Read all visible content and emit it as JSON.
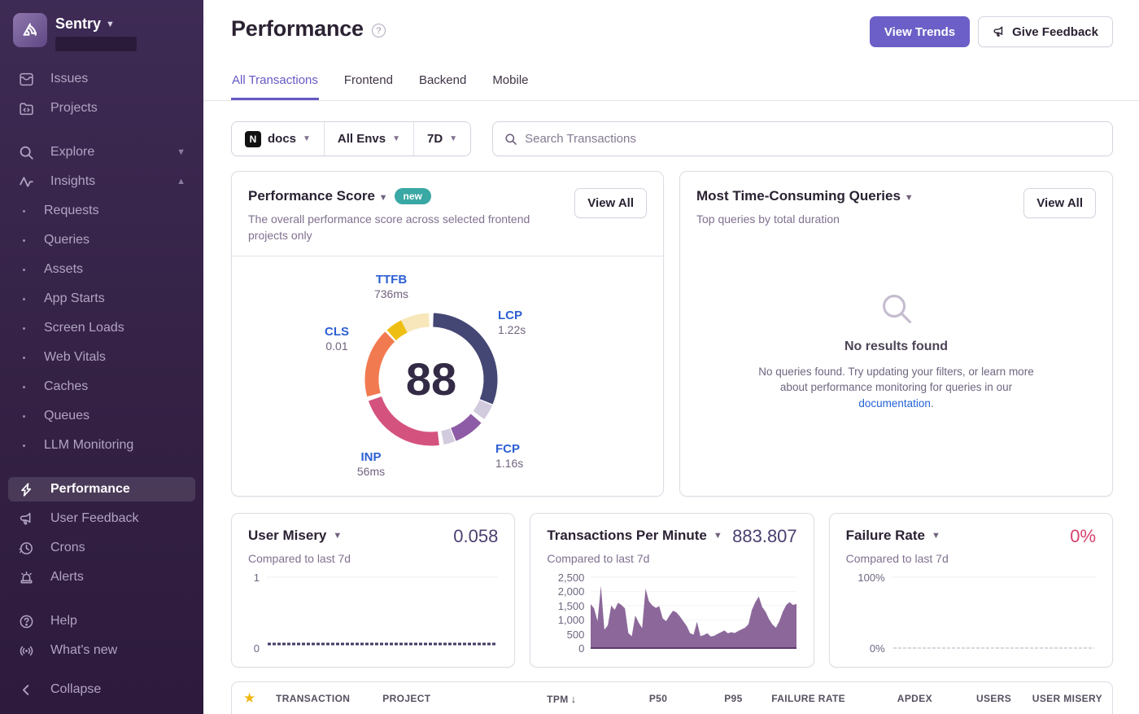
{
  "sidebar": {
    "brand": {
      "name": "Sentry"
    },
    "primary": [
      {
        "id": "issues",
        "label": "Issues",
        "icon": "issues"
      },
      {
        "id": "projects",
        "label": "Projects",
        "icon": "projects"
      }
    ],
    "explore": {
      "id": "explore",
      "label": "Explore",
      "icon": "search",
      "chevron": "down"
    },
    "insights": {
      "id": "insights",
      "label": "Insights",
      "icon": "insights",
      "chevron": "up"
    },
    "insights_children": [
      {
        "id": "requests",
        "label": "Requests"
      },
      {
        "id": "queries",
        "label": "Queries"
      },
      {
        "id": "assets",
        "label": "Assets"
      },
      {
        "id": "app-starts",
        "label": "App Starts"
      },
      {
        "id": "screen-loads",
        "label": "Screen Loads"
      },
      {
        "id": "web-vitals",
        "label": "Web Vitals"
      },
      {
        "id": "caches",
        "label": "Caches"
      },
      {
        "id": "queues",
        "label": "Queues"
      },
      {
        "id": "llm-monitoring",
        "label": "LLM Monitoring"
      }
    ],
    "secondary": [
      {
        "id": "performance",
        "label": "Performance",
        "icon": "bolt",
        "active": true
      },
      {
        "id": "user-feedback",
        "label": "User Feedback",
        "icon": "megaphone"
      },
      {
        "id": "crons",
        "label": "Crons",
        "icon": "clock"
      },
      {
        "id": "alerts",
        "label": "Alerts",
        "icon": "siren"
      }
    ],
    "footer": [
      {
        "id": "help",
        "label": "Help",
        "icon": "help"
      },
      {
        "id": "whats-new",
        "label": "What's new",
        "icon": "broadcast"
      }
    ],
    "collapse": {
      "label": "Collapse"
    }
  },
  "header": {
    "title": "Performance",
    "view_trends_label": "View Trends",
    "give_feedback_label": "Give Feedback"
  },
  "tabs": [
    {
      "label": "All Transactions",
      "active": true
    },
    {
      "label": "Frontend",
      "active": false
    },
    {
      "label": "Backend",
      "active": false
    },
    {
      "label": "Mobile",
      "active": false
    }
  ],
  "filters": {
    "project": "docs",
    "project_icon": "N",
    "environment": "All Envs",
    "period": "7D",
    "search_placeholder": "Search Transactions"
  },
  "cards": {
    "performance_score": {
      "title": "Performance Score",
      "badge": "new",
      "description": "The overall performance score across selected frontend projects only",
      "view_all_label": "View All",
      "score": "88",
      "chart_data": {
        "type": "pie",
        "title": "Performance Score",
        "center_value": 88,
        "vitals": [
          {
            "name": "TTFB",
            "value": "736ms"
          },
          {
            "name": "LCP",
            "value": "1.22s"
          },
          {
            "name": "CLS",
            "value": "0.01"
          },
          {
            "name": "INP",
            "value": "56ms"
          },
          {
            "name": "FCP",
            "value": "1.16s"
          }
        ],
        "segments": [
          {
            "vital": "LCP",
            "from": 2,
            "to": 112,
            "color": "#444674"
          },
          {
            "vital": "LCP-unfilled",
            "from": 113,
            "to": 127,
            "color": "#d2cbdd"
          },
          {
            "vital": "FCP",
            "from": 131,
            "to": 158,
            "color": "#8e5ba6"
          },
          {
            "vital": "FCP-unfilled",
            "from": 159,
            "to": 169,
            "color": "#d2cbdd"
          },
          {
            "vital": "INP",
            "from": 173,
            "to": 251,
            "color": "#d4537e"
          },
          {
            "vital": "CLS",
            "from": 255,
            "to": 316,
            "color": "#f27a50"
          },
          {
            "vital": "TTFB",
            "from": 318,
            "to": 333,
            "color": "#efbe13"
          },
          {
            "vital": "TTFB-light",
            "from": 333,
            "to": 358,
            "color": "#f8e7bb"
          }
        ]
      }
    },
    "queries": {
      "title": "Most Time-Consuming Queries",
      "description": "Top queries by total duration",
      "view_all_label": "View All",
      "empty_title": "No results found",
      "empty_text_1": "No queries found. Try updating your filters, or learn more about performance monitoring for queries in our ",
      "empty_link": "documentation",
      "empty_text_2": "."
    },
    "user_misery": {
      "title": "User Misery",
      "value": "0.058",
      "subtitle": "Compared to last 7d",
      "chart_data": {
        "type": "line",
        "ylim": [
          0,
          1
        ],
        "ticks": [
          "1",
          "0"
        ],
        "series_value": 0.058,
        "color": "#3f3b66"
      }
    },
    "tpm": {
      "title": "Transactions Per Minute",
      "value": "883.807",
      "subtitle": "Compared to last 7d",
      "chart_data": {
        "type": "area",
        "ylim": [
          0,
          2500
        ],
        "ticks": [
          "2,500",
          "2,000",
          "1,500",
          "1,000",
          "500",
          "0"
        ],
        "color": "#7c538c",
        "values": [
          1550,
          1400,
          950,
          2200,
          650,
          800,
          1500,
          1350,
          1600,
          1520,
          1400,
          520,
          420,
          1150,
          900,
          700,
          2100,
          1650,
          1500,
          1420,
          1480,
          1050,
          950,
          1150,
          1320,
          1260,
          1120,
          950,
          780,
          520,
          470,
          930,
          420,
          460,
          520,
          410,
          430,
          500,
          560,
          620,
          520,
          560,
          530,
          600,
          660,
          720,
          840,
          1350,
          1620,
          1820,
          1450,
          1280,
          1020,
          830,
          720,
          950,
          1280,
          1520,
          1620,
          1520,
          1560
        ]
      }
    },
    "failure_rate": {
      "title": "Failure Rate",
      "value": "0%",
      "subtitle": "Compared to last 7d",
      "chart_data": {
        "type": "line",
        "ylim": [
          0,
          100
        ],
        "ticks": [
          "100%",
          "0%"
        ],
        "series_value": 0,
        "color": "#cfc8d6"
      }
    }
  },
  "table": {
    "columns": [
      {
        "label": "TRANSACTION",
        "numeric": false
      },
      {
        "label": "PROJECT",
        "numeric": false
      },
      {
        "label": "TPM",
        "numeric": true,
        "sorted": "down"
      },
      {
        "label": "P50",
        "numeric": true
      },
      {
        "label": "P95",
        "numeric": true
      },
      {
        "label": "FAILURE RATE",
        "numeric": true
      },
      {
        "label": "APDEX",
        "numeric": true
      },
      {
        "label": "USERS",
        "numeric": true
      },
      {
        "label": "USER MISERY",
        "numeric": true
      }
    ]
  }
}
